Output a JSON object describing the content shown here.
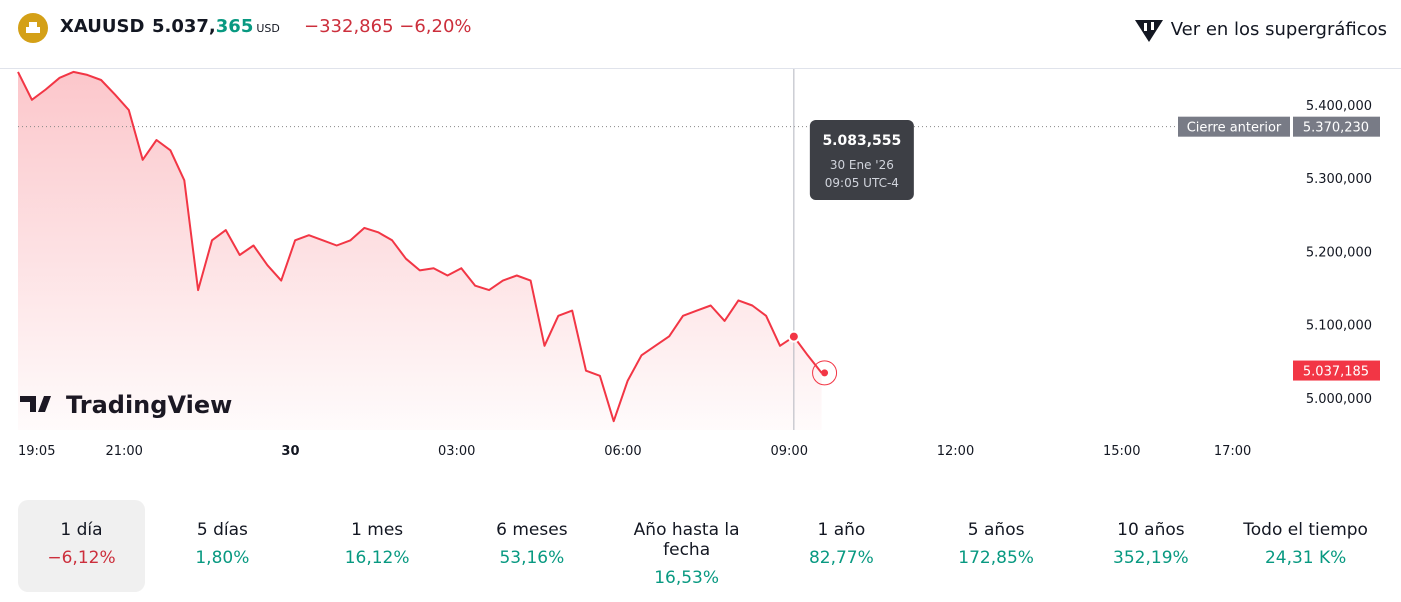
{
  "header": {
    "symbol": "XAUUSD",
    "price_main": "5.037,",
    "price_decimals": "365",
    "currency": "USD",
    "change": "−332,865",
    "change_pct": "−6,20%",
    "link": "Ver en los supergráficos"
  },
  "watermark": "TradingView",
  "tooltip": {
    "value": "5.083,555",
    "date": "30 Ene '26",
    "time": "09:05 UTC-4"
  },
  "chart_data": {
    "type": "area",
    "color": "#f23645",
    "x": [
      "19:05",
      "19:20",
      "19:35",
      "19:50",
      "20:05",
      "20:20",
      "20:35",
      "20:50",
      "21:05",
      "21:20",
      "21:35",
      "21:50",
      "22:05",
      "22:20",
      "22:35",
      "22:50",
      "23:05",
      "23:20",
      "23:35",
      "23:50",
      "00:05",
      "00:20",
      "00:35",
      "00:50",
      "01:05",
      "01:20",
      "01:35",
      "01:50",
      "02:05",
      "02:20",
      "02:35",
      "02:50",
      "03:05",
      "03:20",
      "03:35",
      "03:50",
      "04:05",
      "04:20",
      "04:35",
      "04:50",
      "05:05",
      "05:20",
      "05:35",
      "05:50",
      "06:05",
      "06:20",
      "06:35",
      "06:50",
      "07:05",
      "07:20",
      "07:35",
      "07:50",
      "08:05",
      "08:20",
      "08:35",
      "08:50",
      "09:05",
      "09:20",
      "09:35"
    ],
    "values": [
      5445,
      5407,
      5421,
      5437,
      5445,
      5441,
      5434,
      5414,
      5393,
      5325,
      5352,
      5338,
      5297,
      5147,
      5215,
      5229,
      5195,
      5208,
      5181,
      5160,
      5215,
      5222,
      5215,
      5208,
      5215,
      5232,
      5226,
      5215,
      5190,
      5174,
      5177,
      5167,
      5177,
      5153,
      5147,
      5160,
      5167,
      5160,
      5071,
      5112,
      5119,
      5037,
      5030,
      4968,
      5023,
      5058,
      5071,
      5084,
      5112,
      5119,
      5126,
      5105,
      5133,
      5126,
      5112,
      5071,
      5083.555,
      5058,
      5034
    ],
    "xlim": [
      "19:05",
      "18:00"
    ],
    "xticks": [
      "19:05",
      "21:00",
      {
        "value": "00:00",
        "label": "30"
      },
      "03:00",
      "06:00",
      "09:00",
      "12:00",
      "15:00",
      "17:00"
    ],
    "ylim": [
      4956,
      5449
    ],
    "yticks": [
      {
        "value": 5000,
        "label": "5.000,000"
      },
      {
        "value": 5100,
        "label": "5.100,000"
      },
      {
        "value": 5200,
        "label": "5.200,000"
      },
      {
        "value": 5300,
        "label": "5.300,000"
      },
      {
        "value": 5400,
        "label": "5.400,000"
      }
    ],
    "reference_line": {
      "name": "Cierre anterior",
      "value": 5370.23,
      "label": "5.370,230"
    },
    "last_value": {
      "value": 5037.185,
      "label": "5.037,185"
    }
  },
  "periods": [
    {
      "label": "1 día",
      "value": "−6,12%"
    },
    {
      "label": "5 días",
      "value": "1,80%"
    },
    {
      "label": "1 mes",
      "value": "16,12%"
    },
    {
      "label": "6 meses",
      "value": "53,16%"
    },
    {
      "label": "Año hasta la fecha",
      "value": "16,53%"
    },
    {
      "label": "1 año",
      "value": "82,77%"
    },
    {
      "label": "5 años",
      "value": "172,85%"
    },
    {
      "label": "10 años",
      "value": "352,19%"
    },
    {
      "label": "Todo el tiempo",
      "value": "24,31 K%"
    }
  ]
}
